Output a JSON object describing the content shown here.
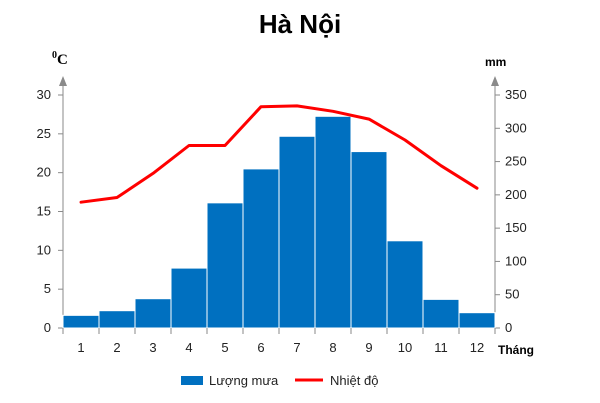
{
  "chart_data": {
    "type": "bar",
    "title": "Hà Nội",
    "categories": [
      "1",
      "2",
      "3",
      "4",
      "5",
      "6",
      "7",
      "8",
      "9",
      "10",
      "11",
      "12"
    ],
    "xlabel": "Tháng",
    "y_left": {
      "unit_sup": "0",
      "unit": "C",
      "ylim": [
        0,
        30
      ],
      "ticks": [
        "0",
        "5",
        "10",
        "15",
        "20",
        "25",
        "30"
      ]
    },
    "y_right": {
      "unit": "mm",
      "ylim": [
        0,
        350
      ],
      "ticks": [
        "0",
        "50",
        "100",
        "150",
        "200",
        "250",
        "300",
        "350"
      ]
    },
    "series": [
      {
        "name": "Lượng mưa",
        "type": "bar",
        "axis": "right",
        "color": "#0070c0",
        "values": [
          19,
          26,
          44,
          90,
          188,
          239,
          288,
          318,
          265,
          131,
          43,
          23
        ]
      },
      {
        "name": "Nhiệt độ",
        "type": "line",
        "axis": "left",
        "color": "#ff0000",
        "values": [
          16.2,
          16.8,
          19.9,
          23.5,
          23.5,
          28.5,
          28.6,
          27.9,
          26.9,
          24.2,
          20.9,
          18.0
        ]
      }
    ],
    "grid": false,
    "legend": "bottom"
  }
}
